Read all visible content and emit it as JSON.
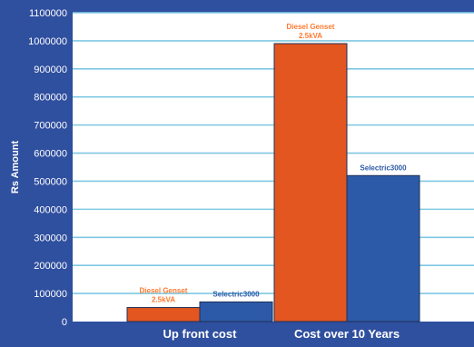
{
  "chart_data": {
    "type": "bar",
    "categories": [
      "Up front cost",
      "Cost over 10 Years"
    ],
    "series": [
      {
        "key": "diesel",
        "color": "#e3561f",
        "values": [
          50000,
          990000
        ],
        "bar_labels": [
          [
            "Diesel Genset",
            "2.5kVA"
          ],
          [
            "Diesel Genset",
            "2.5kVA"
          ]
        ]
      },
      {
        "key": "selectric",
        "color": "#2c5aa8",
        "values": [
          70000,
          520000
        ],
        "bar_labels": [
          [
            "Selectric3000"
          ],
          [
            "Selectric3000"
          ]
        ]
      }
    ],
    "ylabel": "Rs Amount",
    "ylim": [
      0,
      1100000
    ],
    "yticks": [
      0,
      100000,
      200000,
      300000,
      400000,
      500000,
      600000,
      700000,
      800000,
      900000,
      1000000,
      1100000
    ],
    "grid": true,
    "colors": {
      "page_bg": "#2f4f9f",
      "plot_bg": "#ffffff",
      "gridline": "#7ec8e3",
      "tick_text": "#ffffff",
      "diesel_label": "#ff7a2f",
      "selectric_label": "#2c5aa8"
    }
  }
}
